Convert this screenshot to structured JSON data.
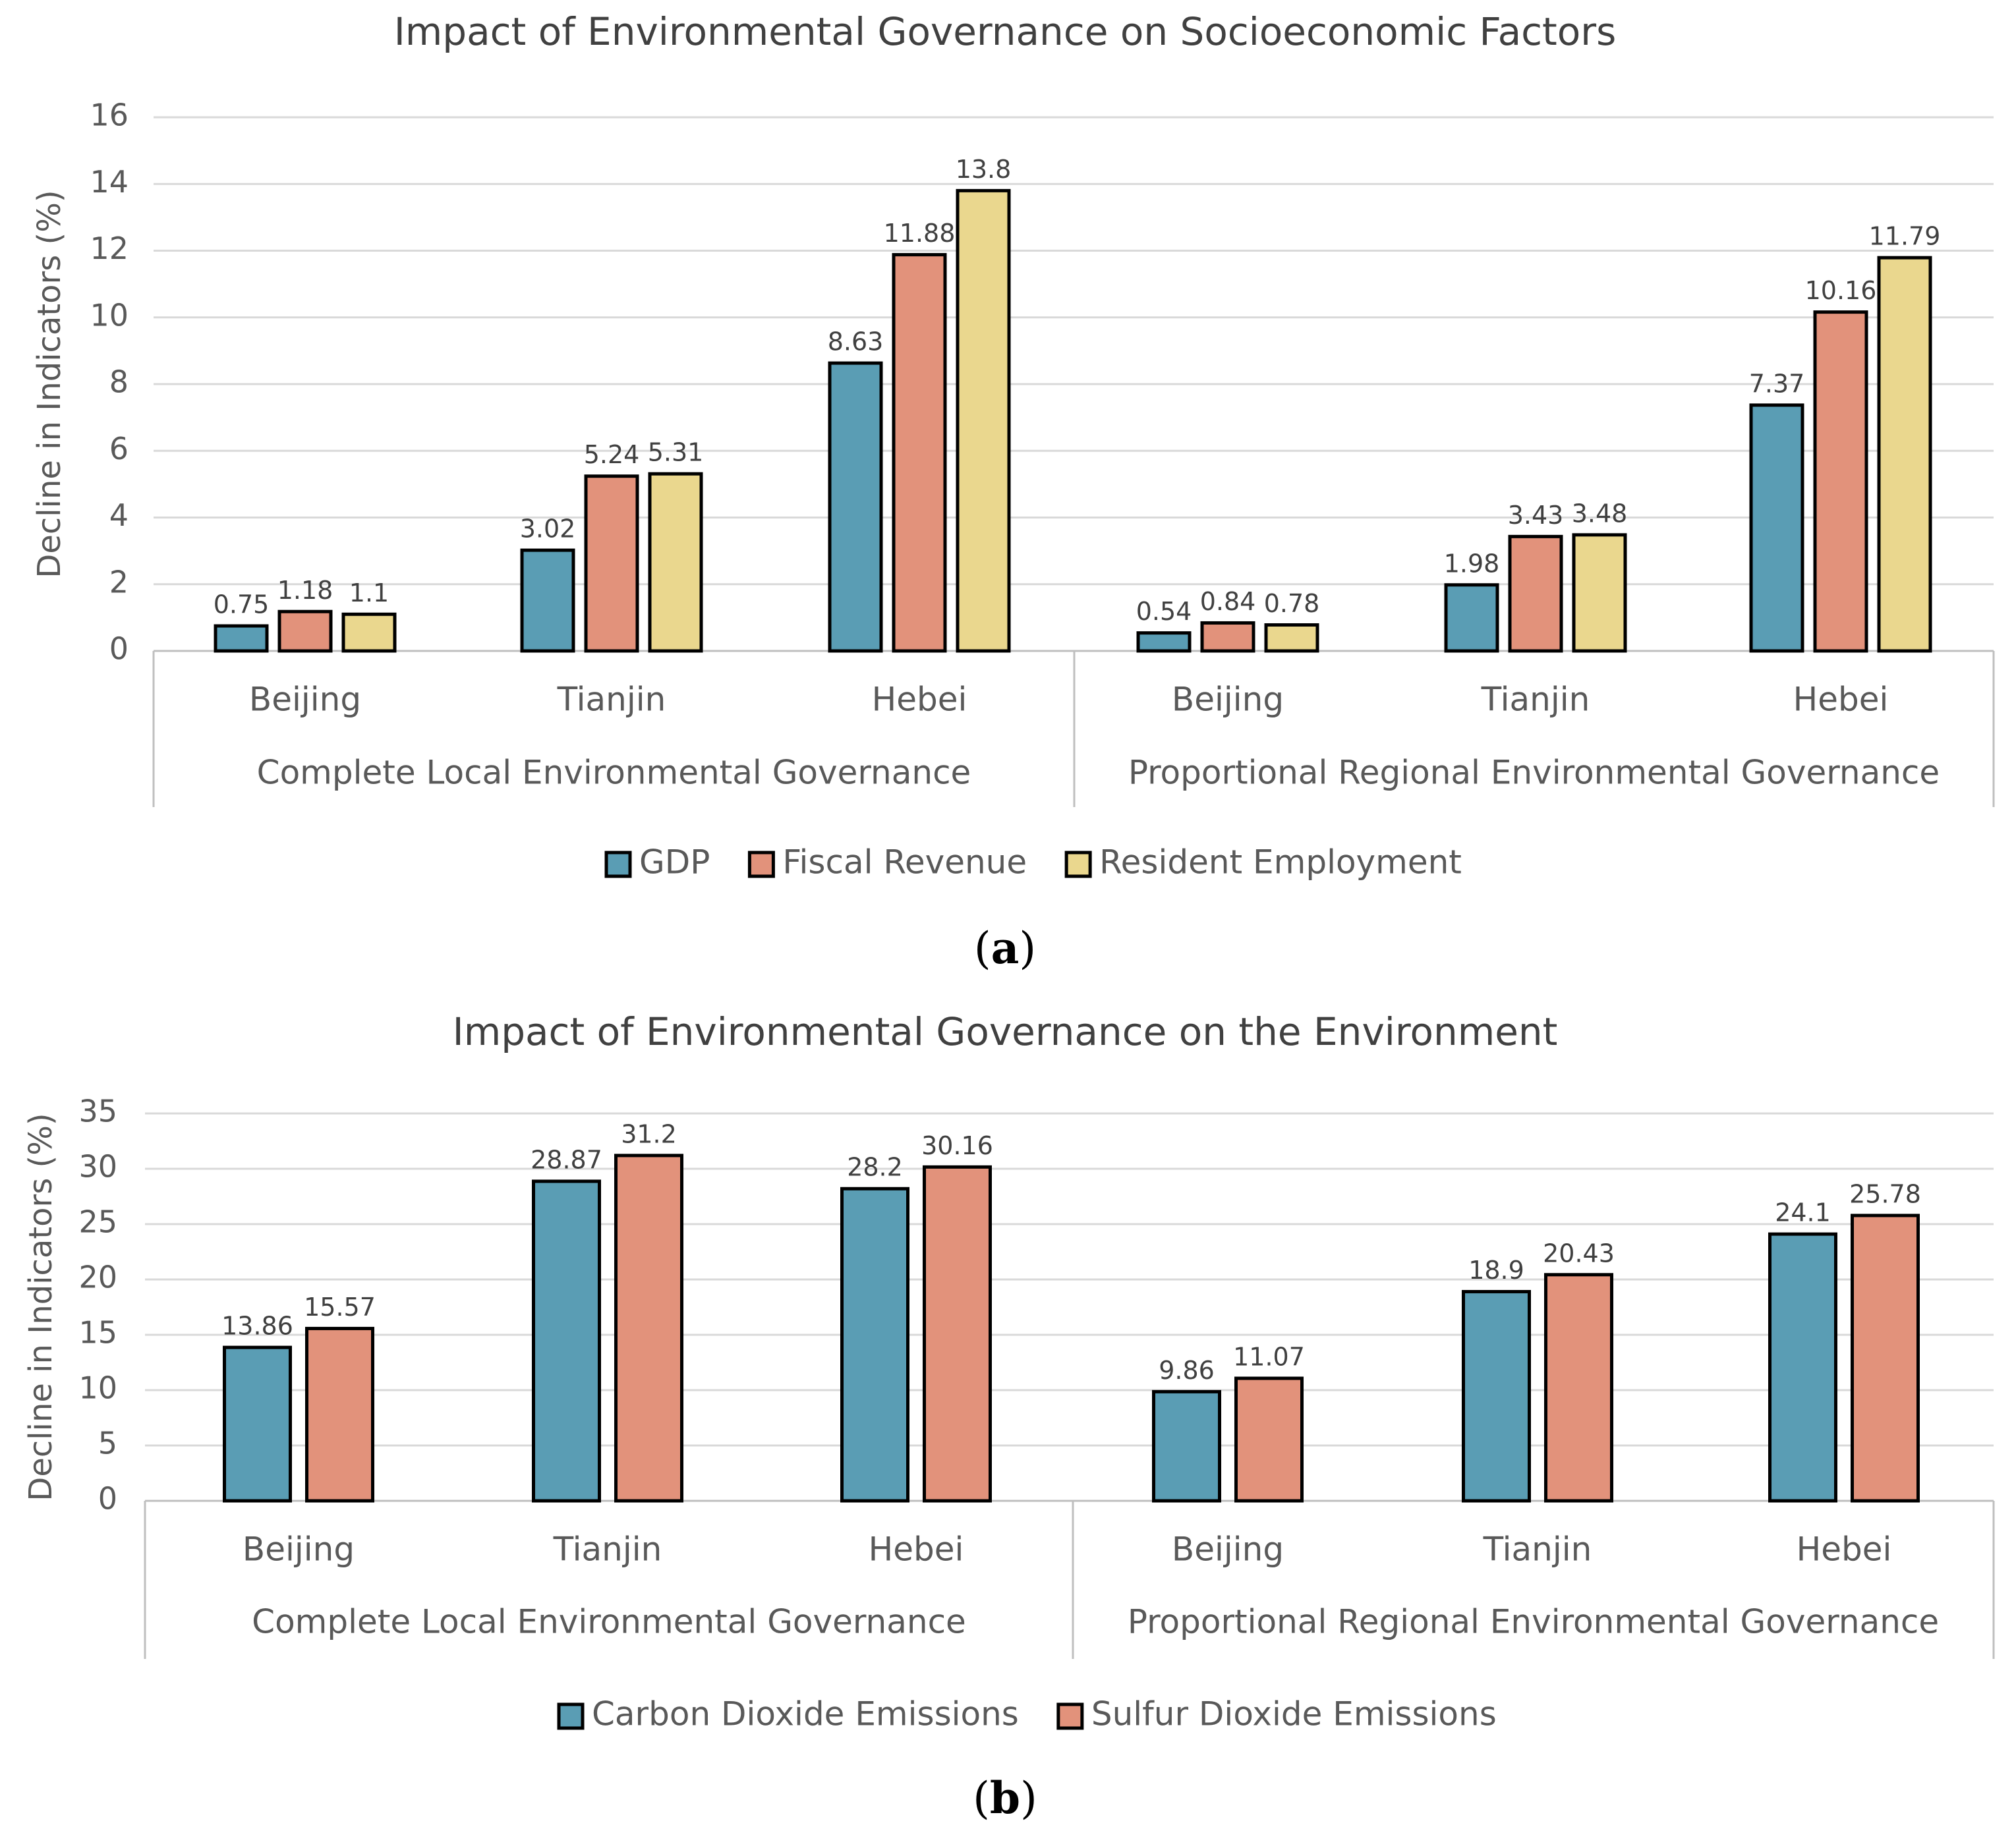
{
  "chart_data": [
    {
      "type": "bar",
      "title": "Impact of Environmental Governance on Socioeconomic Factors",
      "ylabel": "Decline in Indicators (%)",
      "ylim": [
        0,
        16
      ],
      "yticks": [
        0,
        2,
        4,
        6,
        8,
        10,
        12,
        14,
        16
      ],
      "groups": [
        "Complete Local Environmental Governance",
        "Proportional Regional Environmental Governance"
      ],
      "categories": [
        "Beijing",
        "Tianjin",
        "Hebei",
        "Beijing",
        "Tianjin",
        "Hebei"
      ],
      "series": [
        {
          "name": "GDP",
          "color": "#5a9db4",
          "values": [
            0.75,
            3.02,
            8.63,
            0.54,
            1.98,
            7.37
          ],
          "labels": [
            "0.75",
            "3.02",
            "8.63",
            "0.54",
            "1.98",
            "7.37"
          ]
        },
        {
          "name": "Fiscal Revenue",
          "color": "#e2927b",
          "values": [
            1.18,
            5.24,
            11.88,
            0.84,
            3.43,
            10.16
          ],
          "labels": [
            "1.18",
            "5.24",
            "11.88",
            "0.84",
            "3.43",
            "10.16"
          ]
        },
        {
          "name": "Resident Employment",
          "color": "#ead78e",
          "values": [
            1.1,
            5.31,
            13.8,
            0.78,
            3.48,
            11.79
          ],
          "labels": [
            "1.1",
            "5.31",
            "13.8",
            "0.78",
            "3.48",
            "11.79"
          ]
        }
      ],
      "grid": true,
      "legend": "bottom",
      "panel_label": {
        "open": "(",
        "letter": "a",
        "close": ")"
      }
    },
    {
      "type": "bar",
      "title": "Impact of Environmental Governance on the Environment",
      "ylabel": "Decline in Indicators (%)",
      "ylim": [
        0,
        35
      ],
      "yticks": [
        0,
        5,
        10,
        15,
        20,
        25,
        30,
        35
      ],
      "groups": [
        "Complete Local Environmental Governance",
        "Proportional Regional Environmental Governance"
      ],
      "categories": [
        "Beijing",
        "Tianjin",
        "Hebei",
        "Beijing",
        "Tianjin",
        "Hebei"
      ],
      "series": [
        {
          "name": "Carbon Dioxide Emissions",
          "color": "#5a9db4",
          "values": [
            13.86,
            28.87,
            28.2,
            9.86,
            18.9,
            24.1
          ],
          "labels": [
            "13.86",
            "28.87",
            "28.2",
            "9.86",
            "18.9",
            "24.1"
          ]
        },
        {
          "name": "Sulfur Dioxide Emissions",
          "color": "#e2927b",
          "values": [
            15.57,
            31.2,
            30.16,
            11.07,
            20.43,
            25.78
          ],
          "labels": [
            "15.57",
            "31.2",
            "30.16",
            "11.07",
            "20.43",
            "25.78"
          ]
        }
      ],
      "grid": true,
      "legend": "bottom",
      "panel_label": {
        "open": "(",
        "letter": "b",
        "close": ")"
      }
    }
  ]
}
